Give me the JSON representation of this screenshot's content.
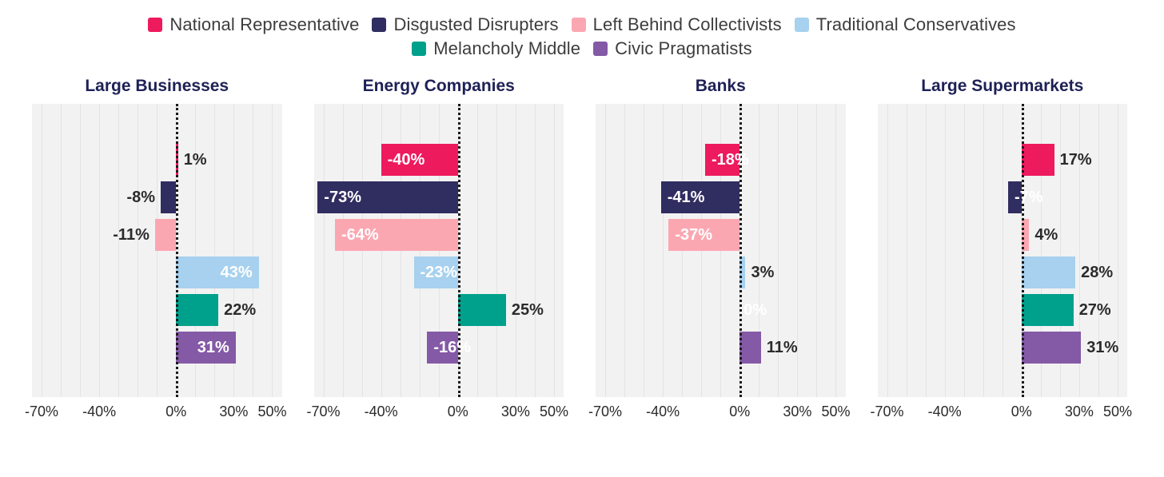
{
  "legend": {
    "items": [
      {
        "label": "National Representative",
        "color": "#ED1A5E"
      },
      {
        "label": "Disgusted Disrupters",
        "color": "#302D60"
      },
      {
        "label": "Left Behind Collectivists",
        "color": "#FBA7B2"
      },
      {
        "label": "Traditional Conservatives",
        "color": "#A7D1EE"
      },
      {
        "label": "Melancholy Middle",
        "color": "#00A18C"
      },
      {
        "label": "Civic Pragmatists",
        "color": "#8459A5"
      }
    ]
  },
  "chart_data": {
    "type": "bar",
    "orientation": "horizontal",
    "unit": "%",
    "series_names": [
      "National Representative",
      "Disgusted Disrupters",
      "Left Behind Collectivists",
      "Traditional Conservatives",
      "Melancholy Middle",
      "Civic Pragmatists"
    ],
    "x_axis": {
      "min": -75,
      "max": 55,
      "gridline_step": 10,
      "ticks": [
        {
          "value": -70,
          "label": "-70%"
        },
        {
          "value": -40,
          "label": "-40%"
        },
        {
          "value": 0,
          "label": "0%"
        },
        {
          "value": 30,
          "label": "30%"
        },
        {
          "value": 50,
          "label": "50%"
        }
      ]
    },
    "zero_line": true,
    "panels": [
      {
        "title": "Large Businesses",
        "bars": [
          {
            "series": "National Representative",
            "value": 1,
            "label": "1%",
            "placement": "outside"
          },
          {
            "series": "Disgusted Disrupters",
            "value": -8,
            "label": "-8%",
            "placement": "outside"
          },
          {
            "series": "Left Behind Collectivists",
            "value": -11,
            "label": "-11%",
            "placement": "outside"
          },
          {
            "series": "Traditional Conservatives",
            "value": 43,
            "label": "43%",
            "placement": "inside"
          },
          {
            "series": "Melancholy Middle",
            "value": 22,
            "label": "22%",
            "placement": "outside"
          },
          {
            "series": "Civic Pragmatists",
            "value": 31,
            "label": "31%",
            "placement": "inside"
          }
        ]
      },
      {
        "title": "Energy Companies",
        "bars": [
          {
            "series": "National Representative",
            "value": -40,
            "label": "-40%",
            "placement": "inside"
          },
          {
            "series": "Disgusted Disrupters",
            "value": -73,
            "label": "-73%",
            "placement": "inside"
          },
          {
            "series": "Left Behind Collectivists",
            "value": -64,
            "label": "-64%",
            "placement": "inside"
          },
          {
            "series": "Traditional Conservatives",
            "value": -23,
            "label": "-23%",
            "placement": "inside"
          },
          {
            "series": "Melancholy Middle",
            "value": 25,
            "label": "25%",
            "placement": "outside"
          },
          {
            "series": "Civic Pragmatists",
            "value": -16,
            "label": "-16%",
            "placement": "inside"
          }
        ]
      },
      {
        "title": "Banks",
        "bars": [
          {
            "series": "National Representative",
            "value": -18,
            "label": "-18%",
            "placement": "inside"
          },
          {
            "series": "Disgusted Disrupters",
            "value": -41,
            "label": "-41%",
            "placement": "inside"
          },
          {
            "series": "Left Behind Collectivists",
            "value": -37,
            "label": "-37%",
            "placement": "inside"
          },
          {
            "series": "Traditional Conservatives",
            "value": 3,
            "label": "3%",
            "placement": "outside"
          },
          {
            "series": "Melancholy Middle",
            "value": 0,
            "label": "0%",
            "placement": "zero"
          },
          {
            "series": "Civic Pragmatists",
            "value": 11,
            "label": "11%",
            "placement": "outside"
          }
        ]
      },
      {
        "title": "Large Supermarkets",
        "bars": [
          {
            "series": "National Representative",
            "value": 17,
            "label": "17%",
            "placement": "outside"
          },
          {
            "series": "Disgusted Disrupters",
            "value": -7,
            "label": "-7%",
            "placement": "inside"
          },
          {
            "series": "Left Behind Collectivists",
            "value": 4,
            "label": "4%",
            "placement": "outside"
          },
          {
            "series": "Traditional Conservatives",
            "value": 28,
            "label": "28%",
            "placement": "outside"
          },
          {
            "series": "Melancholy Middle",
            "value": 27,
            "label": "27%",
            "placement": "outside"
          },
          {
            "series": "Civic Pragmatists",
            "value": 31,
            "label": "31%",
            "placement": "outside"
          }
        ]
      }
    ]
  }
}
